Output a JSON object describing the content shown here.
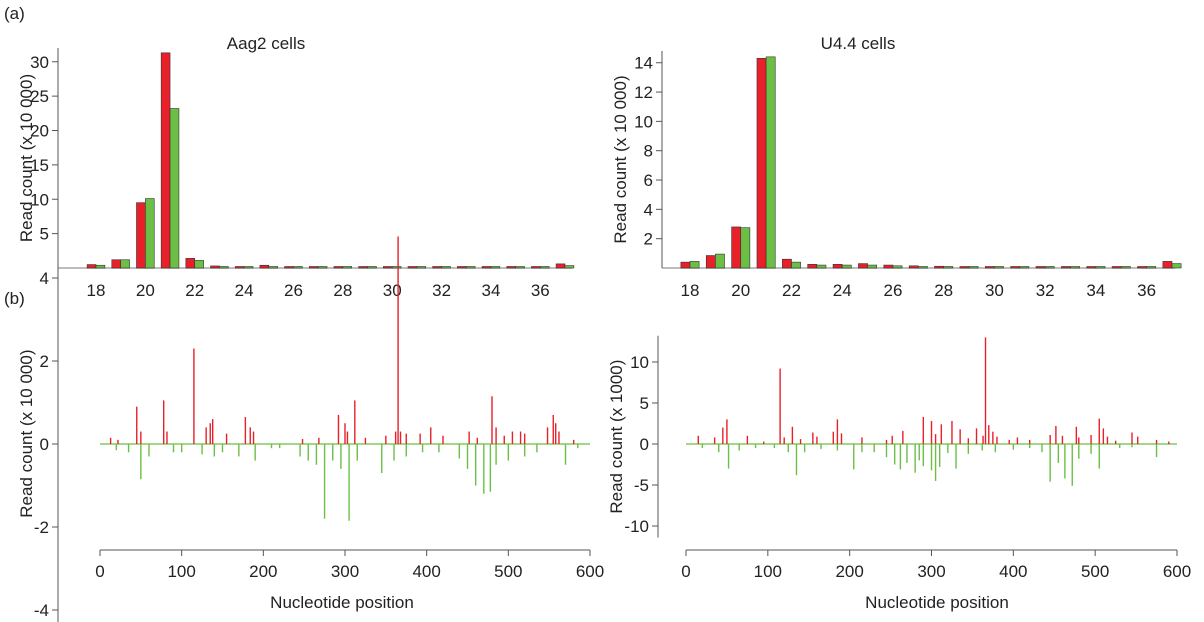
{
  "panel_labels": [
    "(a)",
    "(b)"
  ],
  "chart_data": [
    {
      "type": "bar",
      "panel": "(a)",
      "title": "Aag2 cells",
      "xlabel": "",
      "ylabel": "Read count (x 10 000)",
      "categories": [
        18,
        19,
        20,
        21,
        22,
        23,
        24,
        25,
        26,
        27,
        28,
        29,
        30,
        31,
        32,
        33,
        34,
        35,
        36,
        37
      ],
      "x_tick_labels": [
        "18",
        "20",
        "22",
        "24",
        "26",
        "28",
        "30",
        "32",
        "34",
        "36"
      ],
      "y_ticks": [
        5,
        10,
        15,
        20,
        25,
        30
      ],
      "ylim": [
        0,
        32
      ],
      "series": [
        {
          "color": "#e8202a",
          "values": [
            0.5,
            1.2,
            9.5,
            31.3,
            1.4,
            0.3,
            0.2,
            0.4,
            0.15,
            0.1,
            0.08,
            0.06,
            0.05,
            0.05,
            0.04,
            0.04,
            0.04,
            0.04,
            0.04,
            0.6
          ]
        },
        {
          "color": "#6bbf44",
          "values": [
            0.4,
            1.2,
            10.1,
            23.2,
            1.1,
            0.2,
            0.15,
            0.2,
            0.1,
            0.08,
            0.06,
            0.05,
            0.04,
            0.04,
            0.04,
            0.04,
            0.04,
            0.04,
            0.04,
            0.35
          ]
        }
      ],
      "grid": false
    },
    {
      "type": "bar",
      "panel": "(a)",
      "title": "U4.4 cells",
      "xlabel": "",
      "ylabel": "Read count (x 10 000)",
      "categories": [
        18,
        19,
        20,
        21,
        22,
        23,
        24,
        25,
        26,
        27,
        28,
        29,
        30,
        31,
        32,
        33,
        34,
        35,
        36,
        37
      ],
      "x_tick_labels": [
        "18",
        "20",
        "22",
        "24",
        "26",
        "28",
        "30",
        "32",
        "34",
        "36"
      ],
      "y_ticks": [
        2,
        4,
        6,
        8,
        10,
        12,
        14
      ],
      "ylim": [
        0,
        14.8
      ],
      "series": [
        {
          "color": "#e8202a",
          "values": [
            0.4,
            0.85,
            2.8,
            14.3,
            0.6,
            0.25,
            0.25,
            0.3,
            0.2,
            0.15,
            0.12,
            0.1,
            0.1,
            0.06,
            0.05,
            0.05,
            0.05,
            0.05,
            0.05,
            0.45
          ]
        },
        {
          "color": "#6bbf44",
          "values": [
            0.45,
            0.95,
            2.75,
            14.4,
            0.4,
            0.2,
            0.2,
            0.2,
            0.15,
            0.1,
            0.08,
            0.08,
            0.06,
            0.05,
            0.04,
            0.04,
            0.04,
            0.04,
            0.04,
            0.3
          ]
        }
      ],
      "grid": false
    },
    {
      "type": "bar",
      "panel": "(b)",
      "title": "",
      "xlabel": "Nucleotide position",
      "ylabel": "Read count (x 10 000)",
      "x_ticks": [
        0,
        100,
        200,
        300,
        400,
        500,
        600
      ],
      "y_ticks": [
        -4,
        -2,
        0,
        2,
        4
      ],
      "xlim": [
        0,
        600
      ],
      "ylim": [
        -4.6,
        5.1
      ],
      "series": [
        {
          "color": "#e8202a",
          "points": [
            [
              13,
              0.15
            ],
            [
              22,
              0.1
            ],
            [
              45,
              0.9
            ],
            [
              50,
              0.3
            ],
            [
              78,
              1.05
            ],
            [
              82,
              0.3
            ],
            [
              115,
              2.3
            ],
            [
              130,
              0.4
            ],
            [
              135,
              0.5
            ],
            [
              138,
              0.6
            ],
            [
              155,
              0.25
            ],
            [
              178,
              0.65
            ],
            [
              184,
              0.4
            ],
            [
              188,
              0.3
            ],
            [
              248,
              0.12
            ],
            [
              268,
              0.15
            ],
            [
              292,
              0.7
            ],
            [
              300,
              0.5
            ],
            [
              303,
              0.3
            ],
            [
              312,
              1.05
            ],
            [
              325,
              0.15
            ],
            [
              350,
              0.2
            ],
            [
              362,
              0.3
            ],
            [
              365,
              5.0
            ],
            [
              368,
              0.3
            ],
            [
              375,
              0.25
            ],
            [
              392,
              0.25
            ],
            [
              405,
              0.4
            ],
            [
              420,
              0.2
            ],
            [
              452,
              0.3
            ],
            [
              462,
              0.15
            ],
            [
              480,
              1.15
            ],
            [
              485,
              0.4
            ],
            [
              495,
              0.2
            ],
            [
              505,
              0.3
            ],
            [
              515,
              0.3
            ],
            [
              520,
              0.25
            ],
            [
              548,
              0.4
            ],
            [
              555,
              0.7
            ],
            [
              558,
              0.5
            ],
            [
              562,
              0.3
            ],
            [
              580,
              0.1
            ]
          ]
        },
        {
          "color": "#6bbf44",
          "points": [
            [
              20,
              -0.15
            ],
            [
              35,
              -0.2
            ],
            [
              50,
              -0.85
            ],
            [
              60,
              -0.3
            ],
            [
              90,
              -0.2
            ],
            [
              100,
              -0.2
            ],
            [
              125,
              -0.25
            ],
            [
              140,
              -0.3
            ],
            [
              150,
              -0.2
            ],
            [
              170,
              -0.3
            ],
            [
              190,
              -0.4
            ],
            [
              210,
              -0.1
            ],
            [
              220,
              -0.1
            ],
            [
              245,
              -0.3
            ],
            [
              255,
              -0.4
            ],
            [
              265,
              -0.5
            ],
            [
              275,
              -1.8
            ],
            [
              285,
              -0.4
            ],
            [
              295,
              -0.6
            ],
            [
              305,
              -1.85
            ],
            [
              315,
              -0.4
            ],
            [
              345,
              -0.7
            ],
            [
              360,
              -0.4
            ],
            [
              375,
              -0.3
            ],
            [
              395,
              -0.2
            ],
            [
              415,
              -0.2
            ],
            [
              440,
              -0.35
            ],
            [
              450,
              -0.6
            ],
            [
              460,
              -1.0
            ],
            [
              470,
              -1.2
            ],
            [
              478,
              -1.15
            ],
            [
              485,
              -0.5
            ],
            [
              500,
              -0.4
            ],
            [
              520,
              -0.3
            ],
            [
              535,
              -0.2
            ],
            [
              570,
              -0.5
            ],
            [
              585,
              -0.1
            ]
          ]
        }
      ],
      "grid": false
    },
    {
      "type": "bar",
      "panel": "(b)",
      "title": "",
      "xlabel": "Nucleotide position",
      "ylabel": "Read count (x 1000)",
      "x_ticks": [
        0,
        100,
        200,
        300,
        400,
        500,
        600
      ],
      "y_ticks": [
        -10,
        -5,
        0,
        5,
        10
      ],
      "xlim": [
        0,
        600
      ],
      "ylim": [
        -11.4,
        13.2
      ],
      "series": [
        {
          "color": "#e8202a",
          "points": [
            [
              15,
              1.0
            ],
            [
              35,
              0.8
            ],
            [
              45,
              2.0
            ],
            [
              50,
              3.0
            ],
            [
              75,
              1.0
            ],
            [
              95,
              0.3
            ],
            [
              115,
              9.2
            ],
            [
              120,
              0.8
            ],
            [
              130,
              2.1
            ],
            [
              140,
              0.6
            ],
            [
              155,
              1.4
            ],
            [
              160,
              0.9
            ],
            [
              180,
              1.5
            ],
            [
              185,
              3.0
            ],
            [
              190,
              1.3
            ],
            [
              215,
              0.8
            ],
            [
              245,
              0.5
            ],
            [
              252,
              1.0
            ],
            [
              265,
              1.6
            ],
            [
              290,
              3.3
            ],
            [
              300,
              2.8
            ],
            [
              305,
              1.2
            ],
            [
              312,
              2.4
            ],
            [
              325,
              2.8
            ],
            [
              335,
              1.8
            ],
            [
              345,
              0.7
            ],
            [
              355,
              1.9
            ],
            [
              363,
              1.0
            ],
            [
              366,
              13.0
            ],
            [
              370,
              2.3
            ],
            [
              375,
              1.5
            ],
            [
              380,
              0.9
            ],
            [
              395,
              0.5
            ],
            [
              405,
              0.8
            ],
            [
              420,
              0.5
            ],
            [
              445,
              1.1
            ],
            [
              452,
              2.2
            ],
            [
              460,
              1.0
            ],
            [
              477,
              2.1
            ],
            [
              480,
              0.8
            ],
            [
              495,
              1.1
            ],
            [
              505,
              3.1
            ],
            [
              510,
              1.9
            ],
            [
              515,
              0.9
            ],
            [
              525,
              0.4
            ],
            [
              545,
              1.4
            ],
            [
              552,
              0.9
            ],
            [
              575,
              0.5
            ],
            [
              590,
              0.3
            ]
          ]
        },
        {
          "color": "#6bbf44",
          "points": [
            [
              20,
              -0.5
            ],
            [
              40,
              -1.0
            ],
            [
              52,
              -3.0
            ],
            [
              65,
              -0.8
            ],
            [
              85,
              -0.5
            ],
            [
              108,
              -0.5
            ],
            [
              125,
              -1.0
            ],
            [
              135,
              -3.8
            ],
            [
              145,
              -1.0
            ],
            [
              165,
              -0.6
            ],
            [
              185,
              -0.8
            ],
            [
              205,
              -3.1
            ],
            [
              215,
              -1.0
            ],
            [
              230,
              -1.0
            ],
            [
              245,
              -1.6
            ],
            [
              255,
              -2.5
            ],
            [
              262,
              -3.1
            ],
            [
              270,
              -2.3
            ],
            [
              280,
              -3.5
            ],
            [
              285,
              -2.0
            ],
            [
              290,
              -2.7
            ],
            [
              300,
              -3.2
            ],
            [
              305,
              -4.5
            ],
            [
              310,
              -2.8
            ],
            [
              320,
              -1.1
            ],
            [
              330,
              -3.0
            ],
            [
              345,
              -1.2
            ],
            [
              362,
              -0.8
            ],
            [
              378,
              -1.0
            ],
            [
              400,
              -0.7
            ],
            [
              420,
              -0.5
            ],
            [
              435,
              -1.0
            ],
            [
              445,
              -4.6
            ],
            [
              455,
              -2.3
            ],
            [
              463,
              -4.2
            ],
            [
              472,
              -5.1
            ],
            [
              480,
              -1.8
            ],
            [
              495,
              -1.2
            ],
            [
              505,
              -3.0
            ],
            [
              530,
              -0.5
            ],
            [
              545,
              -0.4
            ],
            [
              575,
              -1.6
            ]
          ]
        }
      ],
      "grid": false
    }
  ]
}
